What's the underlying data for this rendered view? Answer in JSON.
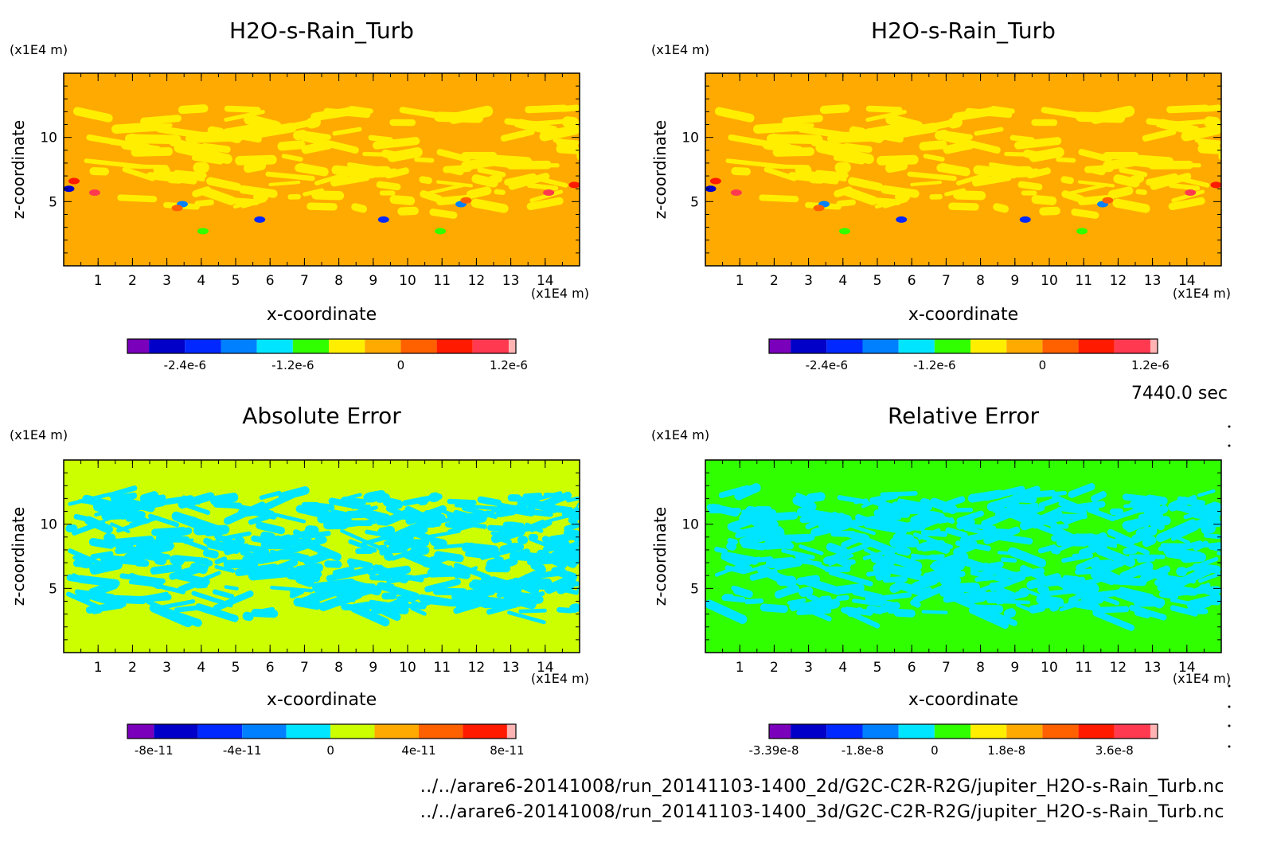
{
  "figure": {
    "timestamp": "7440.0 sec",
    "footer_lines": [
      "../../arare6-20141008/run_20141103-1400_2d/G2C-C2R-R2G/jupiter_H2O-s-Rain_Turb.nc",
      "../../arare6-20141008/run_20141103-1400_3d/G2C-C2R-R2G/jupiter_H2O-s-Rain_Turb.nc"
    ]
  },
  "chart_data": [
    {
      "type": "heatmap",
      "title": "H2O-s-Rain_Turb",
      "xlabel": "x-coordinate",
      "ylabel": "z-coordinate",
      "x_unit": "(x1E4 m)",
      "y_unit": "(x1E4 m)",
      "xlim": [
        0,
        15
      ],
      "ylim": [
        0,
        15
      ],
      "xticks": [
        "1",
        "2",
        "3",
        "4",
        "5",
        "6",
        "7",
        "8",
        "9",
        "10",
        "11",
        "12",
        "13",
        "14"
      ],
      "yticks": [
        "5",
        "10"
      ],
      "background_color": "#ffaa00",
      "band_color": "#ffee00",
      "colorbar": {
        "colors": [
          "#7a00bb",
          "#0000c8",
          "#0028ff",
          "#0080ff",
          "#00e5ff",
          "#30ff00",
          "#ffee00",
          "#ffaa00",
          "#ff6000",
          "#ff1a00",
          "#ff3a50",
          "#ffb4b4"
        ],
        "tick_labels": [
          "-2.4e-6",
          "-1.2e-6",
          "0",
          "1.2e-6"
        ],
        "tick_boundaries": [
          2,
          5,
          8,
          11
        ]
      }
    },
    {
      "type": "heatmap",
      "title": "H2O-s-Rain_Turb",
      "xlabel": "x-coordinate",
      "ylabel": "z-coordinate",
      "x_unit": "(x1E4 m)",
      "y_unit": "(x1E4 m)",
      "xlim": [
        0,
        15
      ],
      "ylim": [
        0,
        15
      ],
      "xticks": [
        "1",
        "2",
        "3",
        "4",
        "5",
        "6",
        "7",
        "8",
        "9",
        "10",
        "11",
        "12",
        "13",
        "14"
      ],
      "yticks": [
        "5",
        "10"
      ],
      "background_color": "#ffaa00",
      "band_color": "#ffee00",
      "colorbar": {
        "colors": [
          "#7a00bb",
          "#0000c8",
          "#0028ff",
          "#0080ff",
          "#00e5ff",
          "#30ff00",
          "#ffee00",
          "#ffaa00",
          "#ff6000",
          "#ff1a00",
          "#ff3a50",
          "#ffb4b4"
        ],
        "tick_labels": [
          "-2.4e-6",
          "-1.2e-6",
          "0",
          "1.2e-6"
        ],
        "tick_boundaries": [
          2,
          5,
          8,
          11
        ]
      }
    },
    {
      "type": "heatmap",
      "title": "Absolute Error",
      "xlabel": "x-coordinate",
      "ylabel": "z-coordinate",
      "x_unit": "(x1E4 m)",
      "y_unit": "(x1E4 m)",
      "xlim": [
        0,
        15
      ],
      "ylim": [
        0,
        15
      ],
      "xticks": [
        "1",
        "2",
        "3",
        "4",
        "5",
        "6",
        "7",
        "8",
        "9",
        "10",
        "11",
        "12",
        "13",
        "14"
      ],
      "yticks": [
        "5",
        "10"
      ],
      "background_color": "#ccff00",
      "band_color": "#00e5ff",
      "colorbar": {
        "colors": [
          "#7a00bb",
          "#0000c8",
          "#0028ff",
          "#0080ff",
          "#00e5ff",
          "#ccff00",
          "#ffaa00",
          "#ff6000",
          "#ff1a00",
          "#ffb4b4"
        ],
        "tick_labels": [
          "-8e-11",
          "-4e-11",
          "0",
          "4e-11",
          "8e-11"
        ],
        "tick_boundaries": [
          1,
          3,
          5,
          7,
          9
        ]
      }
    },
    {
      "type": "heatmap",
      "title": "Relative Error",
      "xlabel": "x-coordinate",
      "ylabel": "z-coordinate",
      "x_unit": "(x1E4 m)",
      "y_unit": "(x1E4 m)",
      "xlim": [
        0,
        15
      ],
      "ylim": [
        0,
        15
      ],
      "xticks": [
        "1",
        "2",
        "3",
        "4",
        "5",
        "6",
        "7",
        "8",
        "9",
        "10",
        "11",
        "12",
        "13",
        "14"
      ],
      "yticks": [
        "5",
        "10"
      ],
      "background_color": "#30ff00",
      "band_color": "#00e5ff",
      "colorbar": {
        "colors": [
          "#7a00bb",
          "#0000c8",
          "#0028ff",
          "#0080ff",
          "#00e5ff",
          "#30ff00",
          "#ffee00",
          "#ffaa00",
          "#ff6000",
          "#ff1a00",
          "#ff3a50",
          "#ffb4b4"
        ],
        "tick_labels": [
          "-3.39e-8",
          "-1.8e-8",
          "0",
          "1.8e-8",
          "3.6e-8"
        ],
        "tick_boundaries": [
          0,
          3,
          5,
          7,
          10
        ]
      }
    }
  ]
}
